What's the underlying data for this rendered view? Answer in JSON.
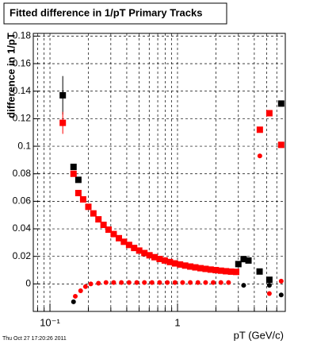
{
  "chart_data": {
    "type": "scatter",
    "title": "Fitted difference in 1/pT  Primary Tracks",
    "y_label": "difference in 1/pT",
    "x_label": "pT (GeV/c)",
    "timestamp": "Thu Oct 27 17:20:26 2011",
    "log_x": true,
    "grid": true,
    "xlim": [
      0.074,
      7
    ],
    "xticks": [
      {
        "value": 0.1,
        "label": "10⁻¹"
      },
      1
    ],
    "xminor": [
      0.08,
      0.09,
      0.2,
      0.3,
      0.4,
      0.5,
      0.6,
      0.7,
      0.8,
      0.9,
      2,
      3,
      4,
      5,
      6,
      7
    ],
    "ylim": [
      -0.02,
      0.182
    ],
    "yticks": [
      0,
      0.02,
      0.04,
      0.06,
      0.08,
      0.1,
      0.12,
      0.14,
      0.16,
      0.18
    ],
    "series": [
      {
        "color": "#000000",
        "marker": "square",
        "x": [
          0.126,
          0.153,
          0.167,
          3.0,
          3.3,
          3.6,
          4.4,
          5.25,
          6.5
        ],
        "values": [
          0.137,
          0.085,
          0.0756,
          0.0144,
          0.018,
          0.017,
          0.009,
          0.003,
          0.131
        ],
        "errors": [
          0.014,
          null,
          null,
          null,
          null,
          null,
          null,
          null,
          null
        ]
      },
      {
        "color": "#ff0000",
        "marker": "square",
        "x": [
          0.126,
          0.153,
          0.167,
          0.182,
          0.2,
          0.219,
          0.24,
          0.263,
          0.288,
          0.316,
          0.347,
          0.38,
          0.417,
          0.457,
          0.501,
          0.55,
          0.603,
          0.661,
          0.724,
          0.794,
          0.871,
          0.955,
          1.047,
          1.148,
          1.259,
          1.38,
          1.514,
          1.66,
          1.82,
          1.995,
          2.188,
          2.399,
          2.63,
          2.884,
          4.42,
          5.25,
          6.5
        ],
        "values": [
          0.117,
          0.08,
          0.066,
          0.0614,
          0.056,
          0.0512,
          0.0469,
          0.0429,
          0.0394,
          0.0362,
          0.0332,
          0.0306,
          0.0283,
          0.0261,
          0.0242,
          0.0224,
          0.0208,
          0.0194,
          0.0181,
          0.017,
          0.0159,
          0.0149,
          0.0141,
          0.0133,
          0.0126,
          0.012,
          0.0114,
          0.0109,
          0.0104,
          0.01,
          0.0096,
          0.0092,
          0.0089,
          0.0087,
          0.112,
          0.124,
          0.101
        ],
        "errors": [
          0.008,
          null,
          null,
          null,
          null,
          null,
          null,
          null,
          null,
          null,
          null,
          null,
          null,
          null,
          null,
          null,
          null,
          null,
          null,
          null,
          null,
          null,
          null,
          null,
          null,
          null,
          null,
          null,
          null,
          null,
          null,
          null,
          null,
          null,
          null,
          null,
          null
        ]
      },
      {
        "color": "#000000",
        "marker": "circle",
        "x": [
          0.153,
          3.3,
          5.25,
          6.5
        ],
        "values": [
          -0.013,
          -0.001,
          -0.001,
          -0.008
        ]
      },
      {
        "color": "#ff0000",
        "marker": "circle",
        "x": [
          0.158,
          0.174,
          0.19,
          0.209,
          0.24,
          0.275,
          0.316,
          0.363,
          0.417,
          0.479,
          0.55,
          0.631,
          0.724,
          0.832,
          0.955,
          1.096,
          1.259,
          1.445,
          1.66,
          1.905,
          2.188,
          2.512,
          4.42,
          5.25,
          6.5
        ],
        "values": [
          -0.009,
          -0.005,
          -0.002,
          0.0,
          0.0005,
          0.001,
          0.001,
          0.001,
          0.001,
          0.001,
          0.001,
          0.001,
          0.001,
          0.001,
          0.001,
          0.001,
          0.001,
          0.001,
          0.001,
          0.001,
          0.001,
          0.001,
          0.093,
          -0.007,
          0.002
        ]
      }
    ]
  }
}
